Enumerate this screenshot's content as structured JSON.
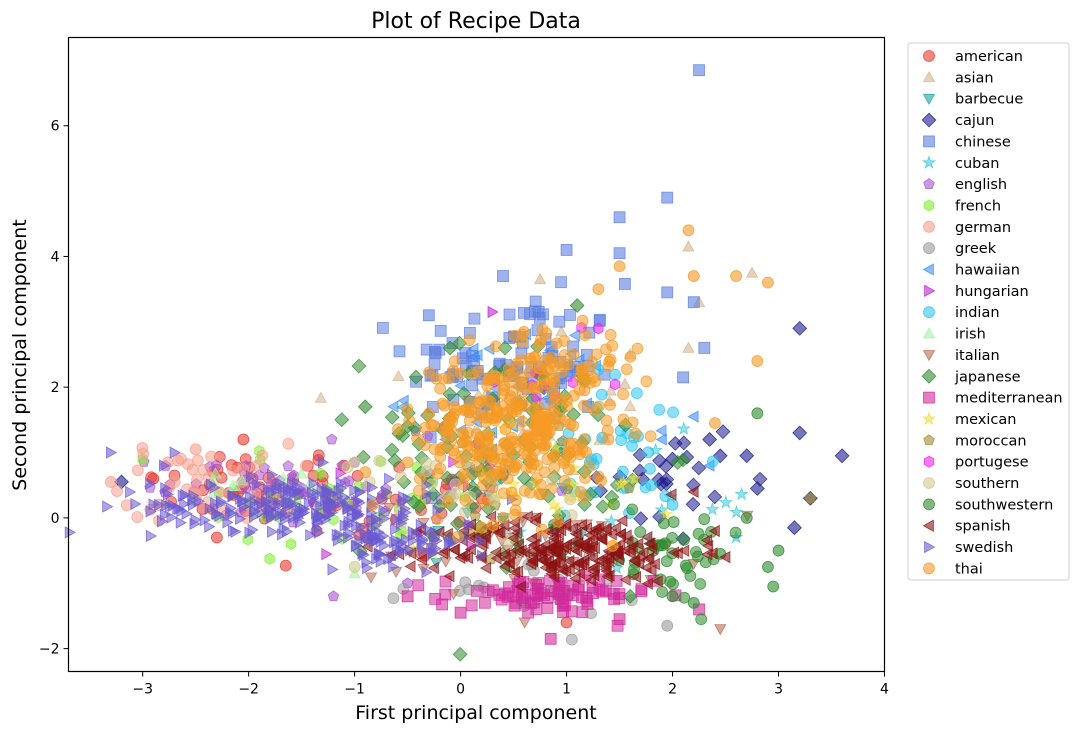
{
  "chart_data": {
    "type": "scatter",
    "title": "Plot of Recipe Data",
    "xlabel": "First principal component",
    "ylabel": "Second principal component",
    "xlim": [
      -3.7,
      4.0
    ],
    "ylim": [
      -2.35,
      7.35
    ],
    "xticks": [
      -3,
      -2,
      -1,
      0,
      1,
      2,
      3,
      4
    ],
    "yticks": [
      -2,
      0,
      2,
      4,
      6
    ],
    "grid": false,
    "legend_position": "right (outside plot)",
    "series": [
      {
        "name": "american",
        "marker": "circle",
        "color": "#e8382f",
        "clusters": [
          [
            -2.0,
            0.5,
            0.5,
            0.3,
            40
          ],
          [
            -0.5,
            0.1,
            0.6,
            0.4,
            30
          ]
        ],
        "points": [
          [
            -2.05,
            1.2
          ],
          [
            -1.1,
            0.8
          ],
          [
            -2.3,
            -0.3
          ],
          [
            -1.65,
            -0.73
          ],
          [
            -2.9,
            0.6
          ],
          [
            1.0,
            -1.6
          ],
          [
            0.2,
            0.3
          ]
        ]
      },
      {
        "name": "asian",
        "marker": "triangle-up",
        "color": "#d2b48c",
        "clusters": [
          [
            0.7,
            1.6,
            0.5,
            0.5,
            30
          ]
        ],
        "points": [
          [
            0.75,
            3.65
          ],
          [
            2.15,
            4.15
          ],
          [
            2.75,
            3.75
          ],
          [
            2.25,
            3.3
          ],
          [
            2.15,
            2.6
          ],
          [
            1.55,
            2.05
          ],
          [
            0.95,
            2.85
          ],
          [
            1.6,
            2.5
          ]
        ]
      },
      {
        "name": "barbecue",
        "marker": "triangle-down",
        "color": "#1aa3a3",
        "clusters": [
          [
            0.5,
            0.0,
            0.6,
            0.5,
            15
          ]
        ],
        "points": []
      },
      {
        "name": "cajun",
        "marker": "diamond",
        "color": "#1a1a8c",
        "clusters": [
          [
            1.9,
            0.5,
            0.4,
            0.6,
            25
          ]
        ],
        "points": [
          [
            -3.2,
            0.55
          ],
          [
            3.6,
            0.95
          ],
          [
            3.2,
            1.3
          ],
          [
            3.2,
            2.9
          ],
          [
            2.8,
            0.45
          ],
          [
            2.35,
            1.2
          ],
          [
            2.45,
            0.95
          ],
          [
            3.3,
            0.3
          ],
          [
            3.15,
            -0.15
          ],
          [
            2.0,
            0.9
          ],
          [
            2.7,
            0.95
          ]
        ]
      },
      {
        "name": "chinese",
        "marker": "square",
        "color": "#5b7ee0",
        "clusters": [
          [
            0.5,
            2.4,
            0.5,
            0.5,
            90
          ]
        ],
        "points": [
          [
            2.25,
            6.85
          ],
          [
            1.95,
            4.9
          ],
          [
            1.5,
            4.6
          ],
          [
            1.0,
            4.1
          ],
          [
            1.5,
            4.05
          ],
          [
            0.4,
            3.7
          ],
          [
            1.55,
            3.58
          ],
          [
            2.2,
            3.3
          ],
          [
            2.3,
            2.6
          ],
          [
            -0.3,
            3.1
          ],
          [
            1.95,
            3.45
          ],
          [
            2.1,
            2.15
          ]
        ]
      },
      {
        "name": "cuban",
        "marker": "star",
        "color": "#40c8d8",
        "clusters": [
          [
            1.8,
            0.2,
            0.5,
            0.5,
            12
          ]
        ],
        "points": [
          [
            2.6,
            -0.3
          ]
        ]
      },
      {
        "name": "english",
        "marker": "pentagon",
        "color": "#a855d0",
        "clusters": [
          [
            -1.9,
            0.5,
            0.5,
            0.3,
            40
          ],
          [
            -0.3,
            0.4,
            0.6,
            0.5,
            20
          ]
        ],
        "points": [
          [
            -1.2,
            -1.2
          ],
          [
            -0.5,
            -1.0
          ]
        ]
      },
      {
        "name": "french",
        "marker": "hexagon",
        "color": "#7cf02a",
        "clusters": [
          [
            -1.2,
            0.3,
            0.8,
            0.4,
            30
          ]
        ],
        "points": [
          [
            -3.0,
            0.9
          ],
          [
            -1.6,
            -0.4
          ]
        ]
      },
      {
        "name": "german",
        "marker": "circle",
        "color": "#f89e8c",
        "clusters": [
          [
            -2.4,
            0.55,
            0.4,
            0.3,
            40
          ]
        ],
        "points": [
          [
            -3.3,
            0.55
          ],
          [
            -2.85,
            0.2
          ],
          [
            -2.5,
            1.05
          ]
        ]
      },
      {
        "name": "greek",
        "marker": "circle",
        "color": "#9a9a9a",
        "clusters": [
          [
            0.5,
            -1.0,
            0.6,
            0.3,
            25
          ]
        ],
        "points": [
          [
            1.95,
            -1.65
          ],
          [
            0.6,
            -1.35
          ]
        ]
      },
      {
        "name": "hawaiian",
        "marker": "triangle-left",
        "color": "#3f8ef2",
        "clusters": [
          [
            0.5,
            1.9,
            0.5,
            0.5,
            40
          ]
        ],
        "points": [
          [
            2.2,
            1.55
          ],
          [
            2.35,
            0.8
          ],
          [
            1.9,
            1.2
          ]
        ]
      },
      {
        "name": "hungarian",
        "marker": "triangle-right",
        "color": "#c020d0",
        "clusters": [
          [
            -0.8,
            0.2,
            0.5,
            0.3,
            12
          ]
        ],
        "points": [
          [
            0.3,
            3.15
          ]
        ]
      },
      {
        "name": "indian",
        "marker": "circle",
        "color": "#2ec4f0",
        "clusters": [
          [
            1.5,
            1.0,
            0.5,
            0.6,
            40
          ]
        ],
        "points": [
          [
            2.0,
            0.2
          ],
          [
            1.8,
            0.5
          ]
        ]
      },
      {
        "name": "irish",
        "marker": "triangle-up",
        "color": "#a6f0a6",
        "clusters": [
          [
            -1.8,
            0.4,
            0.5,
            0.2,
            15
          ]
        ],
        "points": [
          [
            -1.0,
            -0.85
          ]
        ]
      },
      {
        "name": "italian",
        "marker": "triangle-down",
        "color": "#b86c55",
        "clusters": [
          [
            0.6,
            -0.5,
            0.7,
            0.4,
            40
          ]
        ],
        "points": [
          [
            2.45,
            -1.7
          ],
          [
            2.2,
            -0.7
          ],
          [
            1.9,
            -0.4
          ]
        ]
      },
      {
        "name": "japanese",
        "marker": "diamond",
        "color": "#2d8a2d",
        "clusters": [
          [
            0.3,
            1.0,
            0.6,
            0.8,
            110
          ]
        ],
        "points": [
          [
            1.1,
            3.25
          ],
          [
            -0.1,
            2.6
          ],
          [
            -0.5,
            1.4
          ],
          [
            1.6,
            -1.2
          ],
          [
            -0.9,
            1.7
          ]
        ]
      },
      {
        "name": "mediterranean",
        "marker": "square",
        "color": "#d0289a",
        "clusters": [
          [
            0.8,
            -1.2,
            0.5,
            0.15,
            80
          ]
        ],
        "points": [
          [
            0.85,
            -1.85
          ],
          [
            2.25,
            -1.4
          ],
          [
            1.5,
            -1.55
          ],
          [
            0.0,
            -1.45
          ],
          [
            -0.5,
            -1.2
          ]
        ]
      },
      {
        "name": "mexican",
        "marker": "star",
        "color": "#f0e040",
        "clusters": [
          [
            0.8,
            0.5,
            0.6,
            0.5,
            25
          ]
        ],
        "points": []
      },
      {
        "name": "moroccan",
        "marker": "pentagon",
        "color": "#a08a30",
        "clusters": [
          [
            0.7,
            0.6,
            0.6,
            0.5,
            15
          ]
        ],
        "points": [
          [
            3.3,
            0.3
          ]
        ]
      },
      {
        "name": "portugese",
        "marker": "hexagon",
        "color": "#f020f0",
        "clusters": [
          [
            0.8,
            2.0,
            0.4,
            0.4,
            10
          ]
        ],
        "points": [
          [
            1.3,
            2.9
          ]
        ]
      },
      {
        "name": "southern",
        "marker": "circle",
        "color": "#d0c890",
        "clusters": [
          [
            -0.3,
            0.3,
            0.6,
            0.4,
            30
          ]
        ],
        "points": [
          [
            -1.0,
            0.85
          ],
          [
            -1.0,
            -0.75
          ]
        ]
      },
      {
        "name": "southwestern",
        "marker": "circle",
        "color": "#2a8a2a",
        "clusters": [
          [
            1.9,
            -0.5,
            0.4,
            0.4,
            40
          ]
        ],
        "points": [
          [
            2.8,
            1.6
          ],
          [
            2.9,
            -0.75
          ],
          [
            3.0,
            -0.5
          ],
          [
            2.2,
            -1.3
          ],
          [
            2.7,
            0.0
          ],
          [
            2.0,
            -1.2
          ],
          [
            2.45,
            -0.55
          ],
          [
            2.95,
            -1.05
          ]
        ]
      },
      {
        "name": "spanish",
        "marker": "triangle-left",
        "color": "#8c1010",
        "clusters": [
          [
            1.0,
            -0.5,
            0.6,
            0.25,
            220
          ]
        ],
        "points": [
          [
            2.5,
            -0.6
          ],
          [
            2.4,
            -0.2
          ],
          [
            2.2,
            0.4
          ],
          [
            0.1,
            -0.1
          ]
        ]
      },
      {
        "name": "swedish",
        "marker": "triangle-right",
        "color": "#6a5ad0",
        "clusters": [
          [
            -1.6,
            0.2,
            0.65,
            0.2,
            200
          ],
          [
            -0.6,
            -0.35,
            0.35,
            0.18,
            80
          ]
        ],
        "points": [
          [
            -2.6,
            0.35
          ],
          [
            -2.8,
            0.8
          ],
          [
            -3.3,
            1.0
          ],
          [
            -1.3,
            0.85
          ],
          [
            -2.7,
            1.0
          ]
        ]
      },
      {
        "name": "thai",
        "marker": "circle",
        "color": "#f59a25",
        "clusters": [
          [
            0.5,
            1.3,
            0.45,
            0.6,
            300
          ],
          [
            0.9,
            2.3,
            0.4,
            0.3,
            60
          ]
        ],
        "points": [
          [
            2.15,
            4.4
          ],
          [
            1.5,
            3.85
          ],
          [
            2.2,
            3.7
          ],
          [
            2.6,
            3.7
          ],
          [
            2.9,
            3.6
          ],
          [
            1.3,
            3.5
          ],
          [
            2.8,
            2.4
          ],
          [
            2.4,
            1.45
          ],
          [
            -0.5,
            0.85
          ],
          [
            -0.9,
            0.7
          ],
          [
            0.2,
            -0.15
          ]
        ]
      }
    ]
  }
}
